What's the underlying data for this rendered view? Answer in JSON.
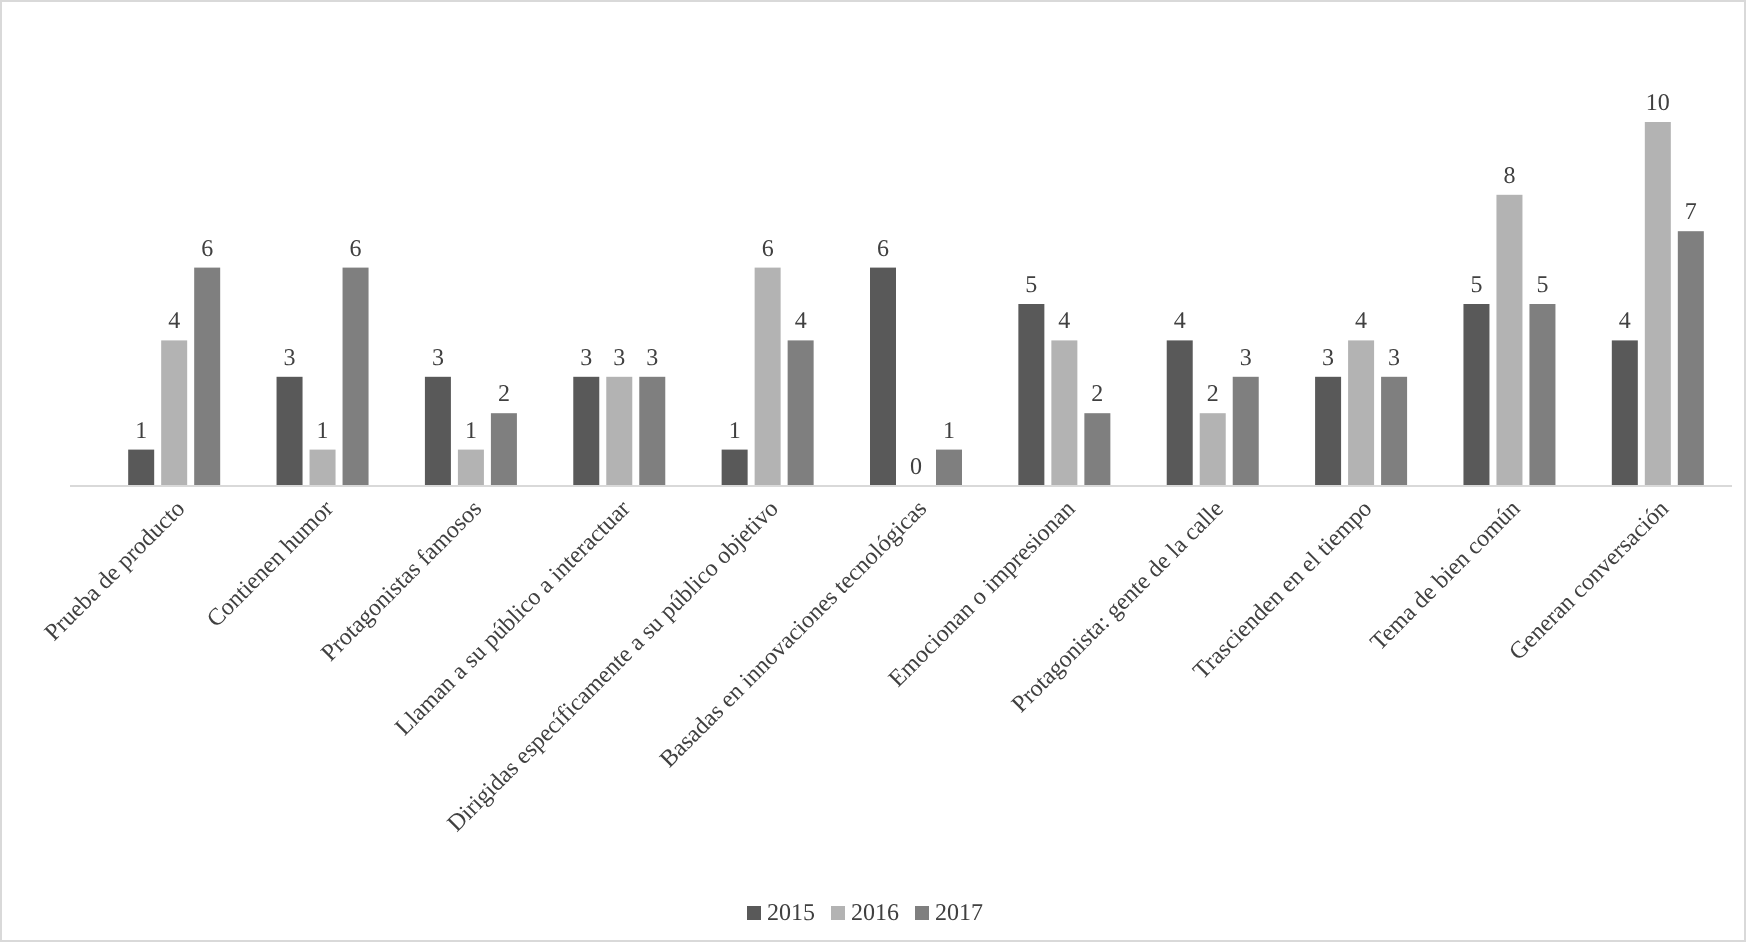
{
  "chart_data": {
    "type": "bar",
    "categories": [
      "Prueba de producto",
      "Contienen humor",
      "Protagonistas famosos",
      "Llaman a su público a interactuar",
      "Dirigidas específicamente a su público objetivo",
      "Basadas en innovaciones tecnológicas",
      "Emocionan o impresionan",
      "Protagonista: gente de la calle",
      "Trascienden en el tiempo",
      "Tema de bien común",
      "Generan conversación"
    ],
    "series": [
      {
        "name": "2015",
        "color": "#595959",
        "values": [
          1,
          3,
          3,
          3,
          1,
          6,
          5,
          4,
          3,
          5,
          4
        ]
      },
      {
        "name": "2016",
        "color": "#b3b3b3",
        "values": [
          4,
          1,
          1,
          3,
          6,
          0,
          4,
          2,
          4,
          8,
          10
        ]
      },
      {
        "name": "2017",
        "color": "#7f7f7f",
        "values": [
          6,
          6,
          2,
          3,
          4,
          1,
          2,
          3,
          3,
          5,
          7
        ]
      }
    ],
    "data_labels": true,
    "legend": "bottom"
  }
}
